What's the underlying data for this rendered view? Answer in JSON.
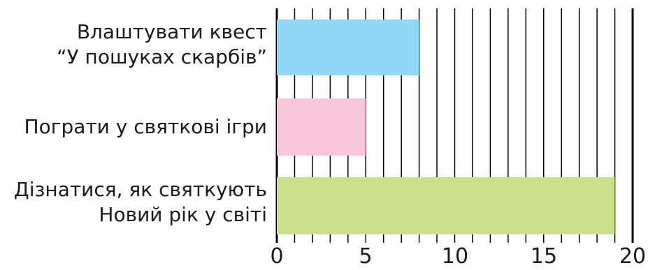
{
  "chart_data": {
    "type": "bar",
    "orientation": "horizontal",
    "categories": [
      [
        "Влаштувати квест",
        "“У пошуках скарбів”"
      ],
      [
        "Пограти у святкові ігри"
      ],
      [
        "Дізнатися, як святкують",
        "Новий рік у світі"
      ]
    ],
    "values": [
      8,
      5,
      19
    ],
    "xlim": [
      0,
      20
    ],
    "xticks": [
      "0",
      "5",
      "10",
      "15",
      "20"
    ],
    "grid": "vertical lines at every unit",
    "colors": [
      "#8fd8f8",
      "#f8c6dc",
      "#cbe08c"
    ],
    "title": "",
    "xlabel": "",
    "ylabel": ""
  }
}
